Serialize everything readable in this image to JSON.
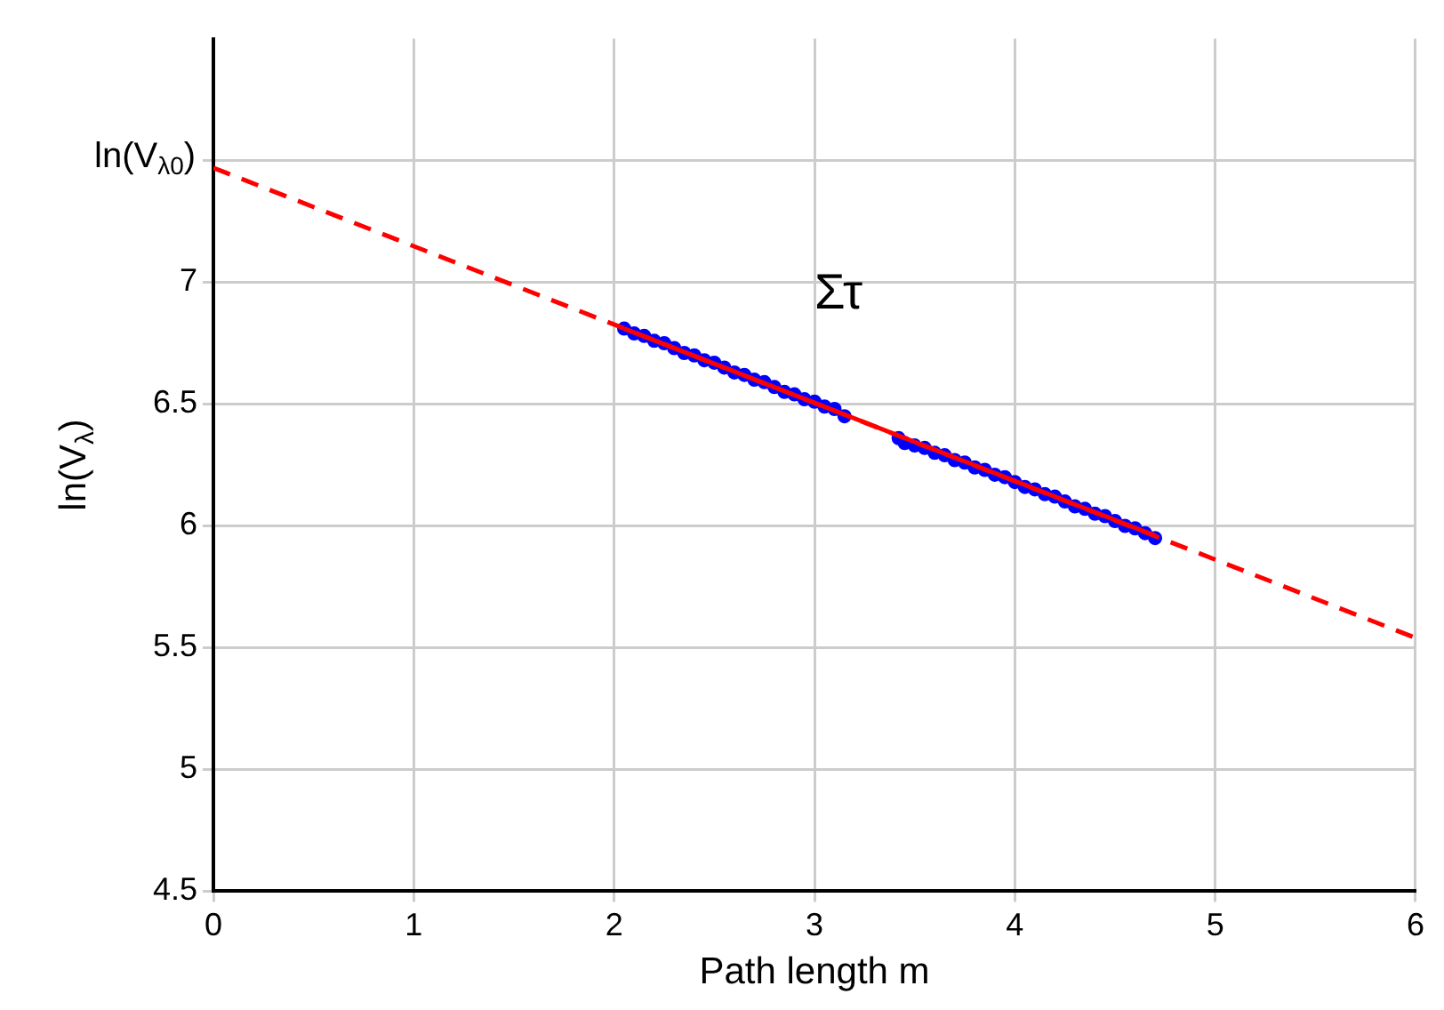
{
  "chart_data": {
    "type": "scatter",
    "xlabel": "Path length m",
    "ylabel": "ln(V$_{λ}$)",
    "xlim": [
      0,
      6
    ],
    "ylim": [
      4.5,
      8
    ],
    "xticks": [
      0,
      1,
      2,
      3,
      4,
      5,
      6
    ],
    "yticks": [
      4.5,
      5,
      5.5,
      6,
      6.5,
      7,
      {
        "value": 7.5,
        "label": "ln(V$_{λ0}$)"
      }
    ],
    "grid": true,
    "legend": false,
    "annotations": [
      "Στ"
    ],
    "series": [
      {
        "color": "#0000ff",
        "marker": "circle",
        "x": [
          2.05,
          2.1,
          2.15,
          2.2,
          2.25,
          2.3,
          2.35,
          2.4,
          2.45,
          2.5,
          2.55,
          2.6,
          2.65,
          2.7,
          2.75,
          2.8,
          2.85,
          2.9,
          2.95,
          3.0,
          3.05,
          3.1,
          3.15,
          3.42,
          3.45,
          3.5,
          3.55,
          3.6,
          3.65,
          3.7,
          3.75,
          3.8,
          3.85,
          3.9,
          3.95,
          4.0,
          4.05,
          4.1,
          4.15,
          4.2,
          4.25,
          4.3,
          4.35,
          4.4,
          4.45,
          4.5,
          4.55,
          4.6,
          4.65,
          4.7
        ],
        "values": [
          6.81,
          6.79,
          6.78,
          6.76,
          6.75,
          6.73,
          6.71,
          6.7,
          6.68,
          6.67,
          6.65,
          6.63,
          6.62,
          6.6,
          6.59,
          6.57,
          6.55,
          6.54,
          6.52,
          6.51,
          6.49,
          6.48,
          6.45,
          6.36,
          6.34,
          6.33,
          6.32,
          6.3,
          6.29,
          6.27,
          6.26,
          6.24,
          6.23,
          6.21,
          6.2,
          6.18,
          6.16,
          6.15,
          6.13,
          6.12,
          6.1,
          6.08,
          6.07,
          6.05,
          6.04,
          6.02,
          6,
          5.99,
          5.97,
          5.95
        ]
      },
      {
        "type": "line",
        "color": "#ff0000",
        "line_style": "solid",
        "marker": "none",
        "x": [
          2.05,
          4.7
        ],
        "values": [
          6.81,
          5.96
        ]
      },
      {
        "type": "line",
        "color": "#ff0000",
        "line_style": "dashed",
        "marker": "none",
        "x": [
          0,
          6
        ],
        "values": [
          7.47,
          5.54
        ]
      }
    ]
  }
}
